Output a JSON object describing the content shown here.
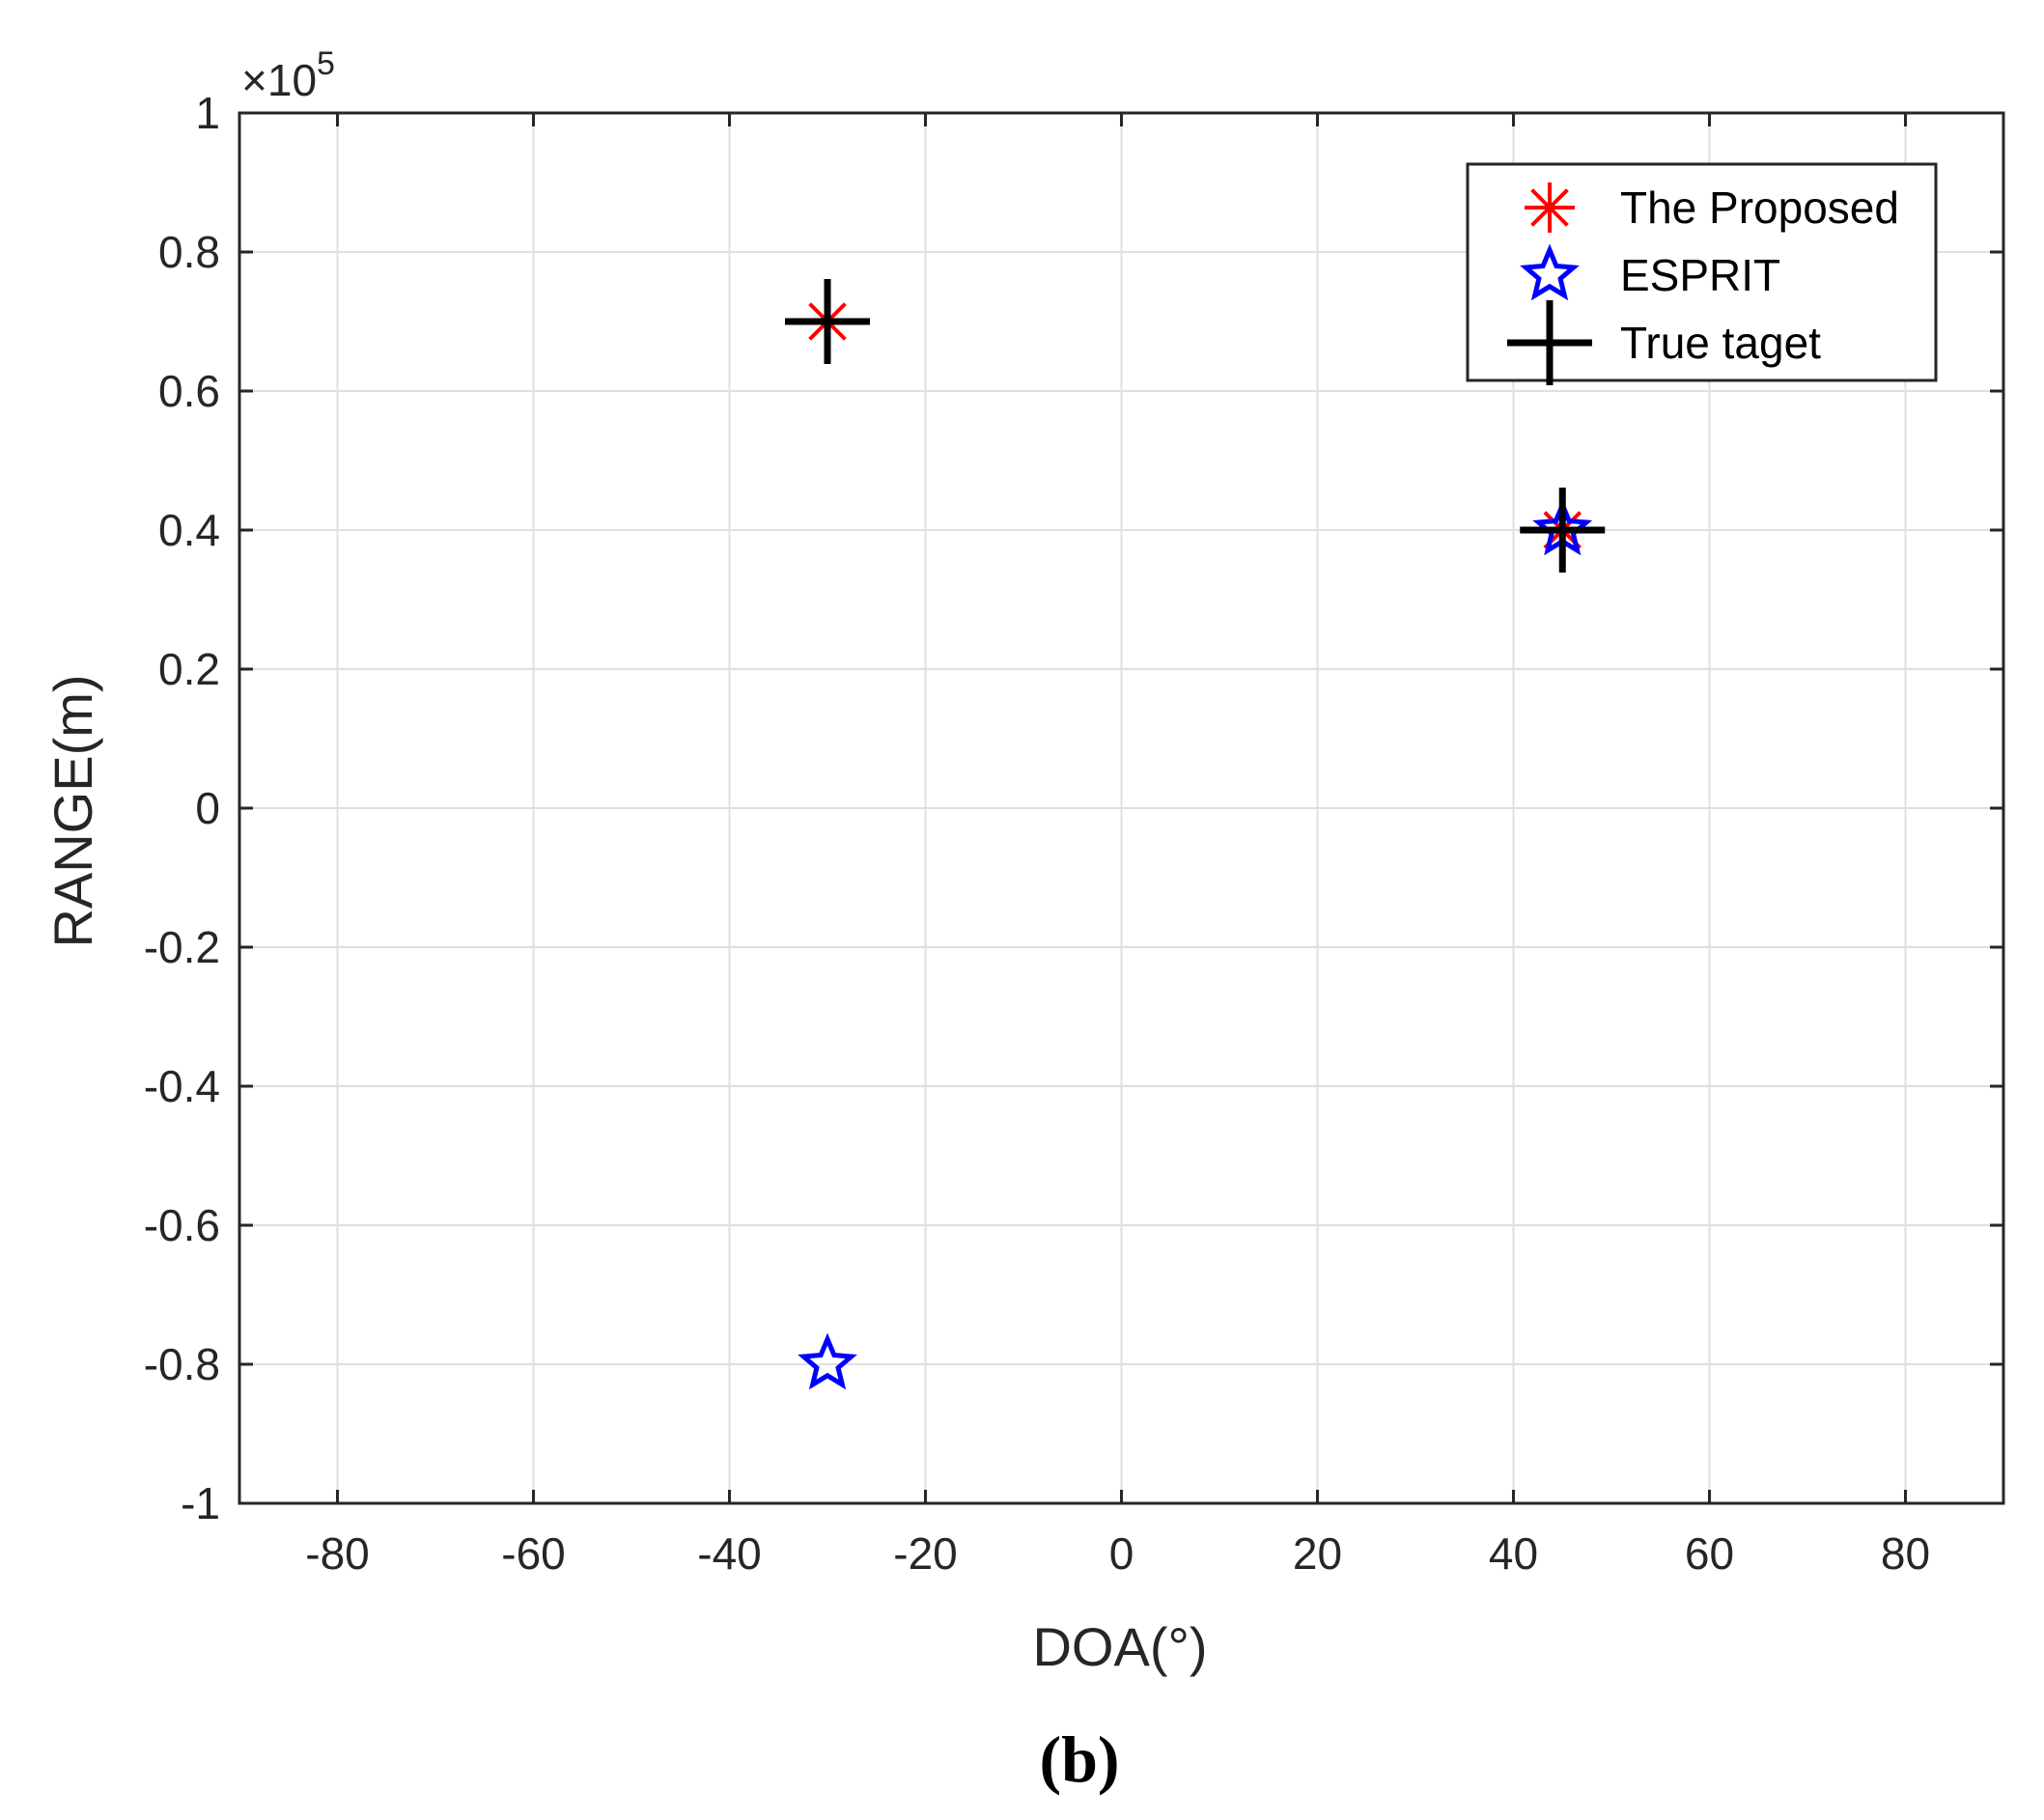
{
  "chart_data": {
    "type": "scatter",
    "xlabel": "DOA(°)",
    "ylabel": "RANGE(m)",
    "xlim": [
      -90,
      90
    ],
    "ylim": [
      -100000,
      100000
    ],
    "x_ticks": [
      -80,
      -60,
      -40,
      -20,
      0,
      20,
      40,
      60,
      80
    ],
    "y_ticks": [
      -1,
      -0.8,
      -0.6,
      -0.4,
      -0.2,
      0,
      0.2,
      0.4,
      0.6,
      0.8,
      1
    ],
    "y_tick_labels": [
      "-1",
      "-0.8",
      "-0.6",
      "-0.4",
      "-0.2",
      "0",
      "0.2",
      "0.4",
      "0.6",
      "0.8",
      "1"
    ],
    "x_tick_labels": [
      "-80",
      "-60",
      "-40",
      "-20",
      "0",
      "20",
      "40",
      "60",
      "80"
    ],
    "y_exponent_label": {
      "prefix": "×10",
      "power": "5"
    },
    "grid": true,
    "legend_position": "top-right",
    "series": [
      {
        "name": "The Proposed",
        "marker": "asterisk",
        "color": "#ff0000",
        "points": [
          {
            "x": -30,
            "y": 70000
          },
          {
            "x": 45,
            "y": 40000
          }
        ]
      },
      {
        "name": "ESPRIT",
        "marker": "pentagram",
        "color": "#0000ff",
        "points": [
          {
            "x": -30,
            "y": -80000
          },
          {
            "x": 45,
            "y": 40000
          }
        ]
      },
      {
        "name": "True taget",
        "marker": "plus",
        "color": "#000000",
        "points": [
          {
            "x": -30,
            "y": 70000
          },
          {
            "x": 45,
            "y": 40000
          }
        ]
      }
    ]
  },
  "caption": "(b)"
}
